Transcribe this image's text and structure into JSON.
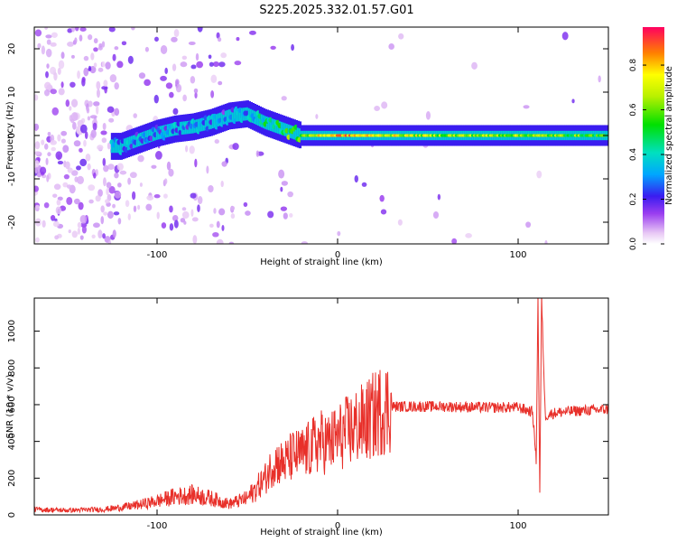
{
  "title": "S225.2025.332.01.57.G01",
  "chart_data": [
    {
      "type": "heatmap",
      "xlabel": "Height of straight line (km)",
      "ylabel": "Frequency (Hz)",
      "xlim": [
        -168,
        150
      ],
      "ylim": [
        -25,
        25
      ],
      "x_ticks": [
        -100,
        0,
        100
      ],
      "y_ticks": [
        -20,
        -10,
        0,
        10,
        20
      ],
      "colorbar": {
        "label": "Normalized spectral amplitude",
        "range": [
          0,
          0.97
        ],
        "ticks": [
          0.0,
          0.2,
          0.4,
          0.6,
          0.8
        ]
      },
      "ridge": [
        {
          "x": -120,
          "freq": -2.5,
          "amp": 0.28
        },
        {
          "x": -110,
          "freq": -1.0,
          "amp": 0.3
        },
        {
          "x": -100,
          "freq": 0.5,
          "amp": 0.28
        },
        {
          "x": -90,
          "freq": 1.5,
          "amp": 0.3
        },
        {
          "x": -80,
          "freq": 2.0,
          "amp": 0.28
        },
        {
          "x": -70,
          "freq": 3.0,
          "amp": 0.28
        },
        {
          "x": -60,
          "freq": 4.5,
          "amp": 0.25
        },
        {
          "x": -50,
          "freq": 5.0,
          "amp": 0.35
        },
        {
          "x": -40,
          "freq": 3.0,
          "amp": 0.45
        },
        {
          "x": -30,
          "freq": 1.5,
          "amp": 0.55
        },
        {
          "x": -20,
          "freq": 0.0,
          "amp": 0.6
        },
        {
          "x": 0,
          "freq": 0.0,
          "amp": 0.85
        },
        {
          "x": 20,
          "freq": 0.0,
          "amp": 0.75
        },
        {
          "x": 60,
          "freq": 0.0,
          "amp": 0.65
        },
        {
          "x": 100,
          "freq": 0.0,
          "amp": 0.65
        },
        {
          "x": 150,
          "freq": 0.0,
          "amp": 0.55
        }
      ]
    },
    {
      "type": "line",
      "xlabel": "Height of straight line (km)",
      "ylabel": "SNR (10 * v/v)",
      "xlim": [
        -168,
        150
      ],
      "ylim": [
        0,
        1180
      ],
      "x_ticks": [
        -100,
        0,
        100
      ],
      "y_ticks": [
        0,
        200,
        400,
        600,
        800,
        1000
      ],
      "color": "#e8302a",
      "series": [
        {
          "x": [
            -168,
            -150,
            -130,
            -120,
            -110,
            -100,
            -90,
            -80,
            -70,
            -60,
            -50,
            -40,
            -35,
            -30,
            -25,
            -20,
            -15,
            -10,
            -5,
            0,
            5,
            10,
            15,
            20,
            25,
            30,
            40,
            60,
            80,
            100,
            108,
            110,
            111,
            112,
            113,
            115,
            120,
            130,
            140,
            150
          ],
          "values": [
            30,
            25,
            30,
            40,
            55,
            75,
            100,
            110,
            90,
            60,
            90,
            200,
            290,
            280,
            320,
            330,
            360,
            400,
            390,
            420,
            450,
            480,
            500,
            540,
            580,
            590,
            590,
            590,
            585,
            585,
            560,
            300,
            1180,
            120,
            1180,
            540,
            555,
            565,
            570,
            575
          ]
        }
      ]
    }
  ]
}
